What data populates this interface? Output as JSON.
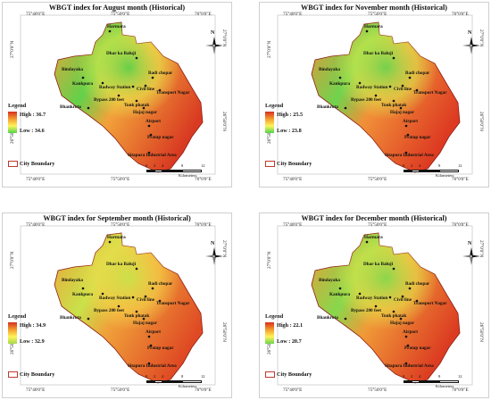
{
  "panels": [
    {
      "title": "WBGT index for August month (Historical)",
      "high_label": "High : 36.7",
      "low_label": "Low : 34.6",
      "gradient": [
        "#d7301f",
        "#f39a2d",
        "#fff35a",
        "#4fd44a"
      ],
      "fill_colors": {
        "body": "#f2a23a",
        "east": "#d93a22",
        "center": "#62d14a",
        "north": "#e7e94c"
      }
    },
    {
      "title": "WBGT index for November month (Historical)",
      "high_label": "High : 25.5",
      "low_label": "Low : 23.8",
      "gradient": [
        "#d7301f",
        "#f39a2d",
        "#fff35a",
        "#4fd44a"
      ],
      "fill_colors": {
        "body": "#f19038",
        "east": "#dd3a22",
        "center": "#6fd34e",
        "north": "#ddea4c"
      }
    },
    {
      "title": "WBGT index for September month (Historical)",
      "high_label": "High : 34.9",
      "low_label": "Low : 32.9",
      "gradient": [
        "#d7301f",
        "#f39a2d",
        "#fff35a",
        "#a8d84a"
      ],
      "fill_colors": {
        "body": "#f0a03a",
        "east": "#df4a24",
        "center": "#c9e24a",
        "north": "#f5d94a"
      }
    },
    {
      "title": "WBGT index for December month (Historical)",
      "high_label": "High : 22.1",
      "low_label": "Low : 20.7",
      "gradient": [
        "#d7301f",
        "#f39a2d",
        "#fff35a",
        "#6cd44a"
      ],
      "fill_colors": {
        "body": "#f09a38",
        "east": "#dc3c22",
        "center": "#86d84c",
        "north": "#e6e54a"
      }
    }
  ],
  "common": {
    "legend_title": "Legend",
    "city_boundary_label": "City Boundary",
    "north_label": "N",
    "coords": {
      "top": [
        "75°40'0\"E",
        "75°50'0\"E",
        "76°0'0\"E"
      ],
      "bottom": [
        "75°40'0\"E",
        "75°50'0\"E",
        "76°0'0\"E"
      ],
      "left": [
        "27°0'0\"N",
        "26°50'0\"N"
      ],
      "right": [
        "27°0'0\"N",
        "26°50'0\"N"
      ]
    },
    "scale_ticks": [
      "0",
      "2",
      "4",
      "8",
      "12"
    ],
    "scale_unit": "Kilometers",
    "places": [
      {
        "name": "Harmara"
      },
      {
        "name": "Dhar ka Baluji"
      },
      {
        "name": "Bindayaka"
      },
      {
        "name": "Kankpura"
      },
      {
        "name": "Badi chopar"
      },
      {
        "name": "Radway Station"
      },
      {
        "name": "Civil line"
      },
      {
        "name": "Transport Nagar"
      },
      {
        "name": "Bypass 200 feet"
      },
      {
        "name": "Tonk phatak"
      },
      {
        "name": "Bhankrota"
      },
      {
        "name": "Hajaj nagar"
      },
      {
        "name": "Airport"
      },
      {
        "name": "Pratap nagar"
      },
      {
        "name": "Sitapura Industrial Area"
      }
    ]
  }
}
